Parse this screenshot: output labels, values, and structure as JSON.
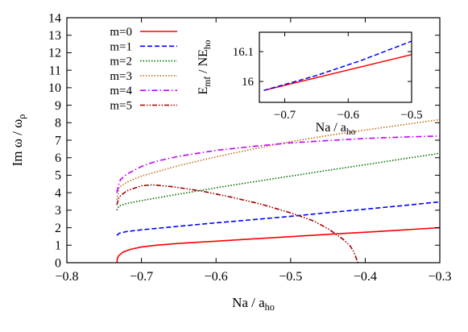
{
  "chart_data": [
    {
      "type": "line",
      "xlabel": "Na / a_ho",
      "ylabel": "Im ω / ω_ρ",
      "xlim": [
        -0.8,
        -0.3
      ],
      "ylim": [
        0,
        14
      ],
      "xticks": [
        "−0.8",
        "−0.7",
        "−0.6",
        "−0.5",
        "−0.4",
        "−0.3"
      ],
      "yticks": [
        "0",
        "1",
        "2",
        "3",
        "4",
        "5",
        "6",
        "7",
        "8",
        "9",
        "10",
        "11",
        "12",
        "13",
        "14"
      ],
      "grid": false,
      "legend_position": "top-left",
      "series": [
        {
          "name": "m=0",
          "color": "#ff0000",
          "dash": "solid",
          "x": [
            -0.733,
            -0.732,
            -0.73,
            -0.725,
            -0.715,
            -0.7,
            -0.68,
            -0.65,
            -0.6,
            -0.55,
            -0.5,
            -0.45,
            -0.4,
            -0.35,
            -0.3
          ],
          "y": [
            0.0,
            0.28,
            0.42,
            0.6,
            0.76,
            0.9,
            1.0,
            1.1,
            1.23,
            1.36,
            1.49,
            1.62,
            1.74,
            1.87,
            2.0
          ]
        },
        {
          "name": "m=1",
          "color": "#0000ff",
          "dash": "dashed",
          "x": [
            -0.733,
            -0.73,
            -0.72,
            -0.7,
            -0.65,
            -0.6,
            -0.55,
            -0.5,
            -0.45,
            -0.4,
            -0.35,
            -0.3
          ],
          "y": [
            1.55,
            1.68,
            1.78,
            1.88,
            2.08,
            2.28,
            2.46,
            2.65,
            2.86,
            3.06,
            3.26,
            3.48
          ]
        },
        {
          "name": "m=2",
          "color": "#007000",
          "dash": "dotted",
          "x": [
            -0.733,
            -0.73,
            -0.72,
            -0.7,
            -0.65,
            -0.6,
            -0.55,
            -0.5,
            -0.45,
            -0.4,
            -0.35,
            -0.3
          ],
          "y": [
            3.0,
            3.25,
            3.38,
            3.55,
            3.92,
            4.28,
            4.62,
            4.95,
            5.28,
            5.6,
            5.93,
            6.25
          ]
        },
        {
          "name": "m=3",
          "color": "#c07020",
          "dash": "dotted",
          "x": [
            -0.733,
            -0.73,
            -0.72,
            -0.7,
            -0.65,
            -0.6,
            -0.55,
            -0.5,
            -0.45,
            -0.4,
            -0.35,
            -0.3
          ],
          "y": [
            3.6,
            4.3,
            4.6,
            4.95,
            5.55,
            6.05,
            6.5,
            6.92,
            7.27,
            7.58,
            7.88,
            8.18
          ]
        },
        {
          "name": "m=4",
          "color": "#c000ff",
          "dash": "dashdot",
          "x": [
            -0.733,
            -0.731,
            -0.728,
            -0.72,
            -0.7,
            -0.68,
            -0.65,
            -0.6,
            -0.55,
            -0.5,
            -0.45,
            -0.4,
            -0.35,
            -0.3
          ],
          "y": [
            4.0,
            4.4,
            4.75,
            5.05,
            5.5,
            5.8,
            6.08,
            6.42,
            6.65,
            6.85,
            6.98,
            7.1,
            7.18,
            7.24
          ]
        },
        {
          "name": "m=5",
          "color": "#a00000",
          "dash": "dashdotdot",
          "x": [
            -0.733,
            -0.73,
            -0.72,
            -0.7,
            -0.685,
            -0.66,
            -0.62,
            -0.58,
            -0.54,
            -0.5,
            -0.47,
            -0.45,
            -0.43,
            -0.42,
            -0.415,
            -0.412,
            -0.41
          ],
          "y": [
            3.3,
            3.75,
            4.1,
            4.4,
            4.45,
            4.35,
            4.1,
            3.75,
            3.35,
            2.85,
            2.4,
            1.95,
            1.35,
            0.95,
            0.6,
            0.25,
            0.0
          ]
        }
      ]
    },
    {
      "type": "line",
      "xlabel": "Na / a_ho",
      "ylabel": "E_mf / NE_ho",
      "xlim": [
        -0.74,
        -0.5
      ],
      "ylim": [
        15.93,
        16.165
      ],
      "xticks": [
        "−0.7",
        "−0.6",
        "−0.5"
      ],
      "yticks": [
        "16",
        "16.1"
      ],
      "series": [
        {
          "name": "",
          "color": "#ff0000",
          "dash": "solid",
          "x": [
            -0.733,
            -0.5
          ],
          "y": [
            15.97,
            16.09
          ]
        },
        {
          "name": "",
          "color": "#0000ff",
          "dash": "dashed",
          "x": [
            -0.733,
            -0.65,
            -0.58,
            -0.5
          ],
          "y": [
            15.97,
            16.02,
            16.07,
            16.135
          ]
        }
      ]
    }
  ]
}
